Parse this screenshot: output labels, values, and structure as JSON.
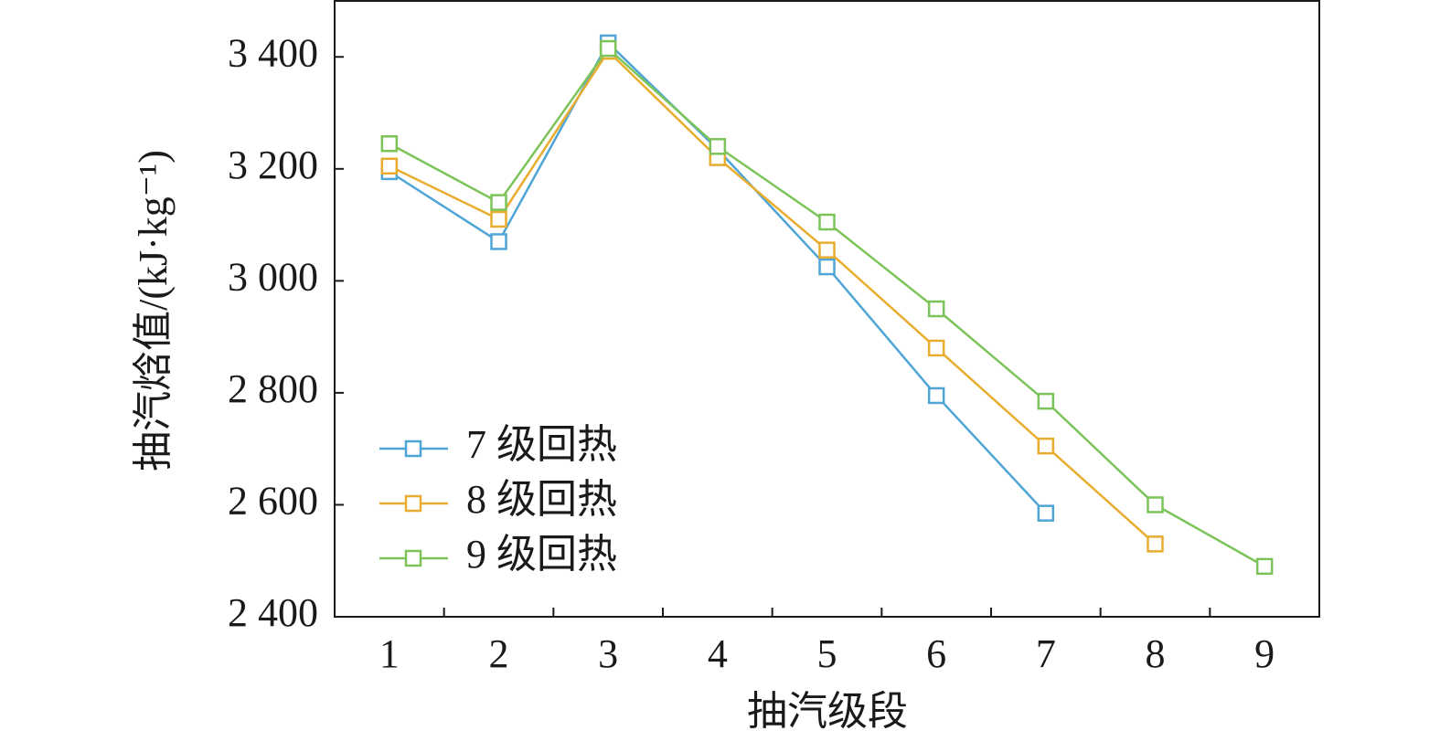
{
  "chart_data": {
    "type": "line",
    "x_label": "抽汽级段",
    "y_label": "抽汽焓值/(kJ·kg⁻¹)",
    "categories": [
      "1",
      "2",
      "3",
      "4",
      "5",
      "6",
      "7",
      "8",
      "9"
    ],
    "series": [
      {
        "name": "7 级回热",
        "color": "#4fa5d6",
        "values": [
          3195,
          3070,
          3425,
          3235,
          3025,
          2795,
          2585,
          null,
          null
        ]
      },
      {
        "name": "8 级回热",
        "color": "#e8ad2e",
        "values": [
          3205,
          3110,
          3410,
          3220,
          3055,
          2880,
          2705,
          2530,
          null
        ]
      },
      {
        "name": "9 级回热",
        "color": "#7cc45a",
        "values": [
          3245,
          3140,
          3415,
          3240,
          3105,
          2950,
          2785,
          2600,
          2490
        ]
      }
    ],
    "ylim": [
      2400,
      3500
    ],
    "yticks": [
      {
        "value": 2400,
        "label": "2 400"
      },
      {
        "value": 2600,
        "label": "2 600"
      },
      {
        "value": 2800,
        "label": "2 800"
      },
      {
        "value": 3000,
        "label": "3 000"
      },
      {
        "value": 3200,
        "label": "3 200"
      },
      {
        "value": 3400,
        "label": "3 400"
      }
    ],
    "legend": "lower left",
    "marker": "hollow-square"
  }
}
